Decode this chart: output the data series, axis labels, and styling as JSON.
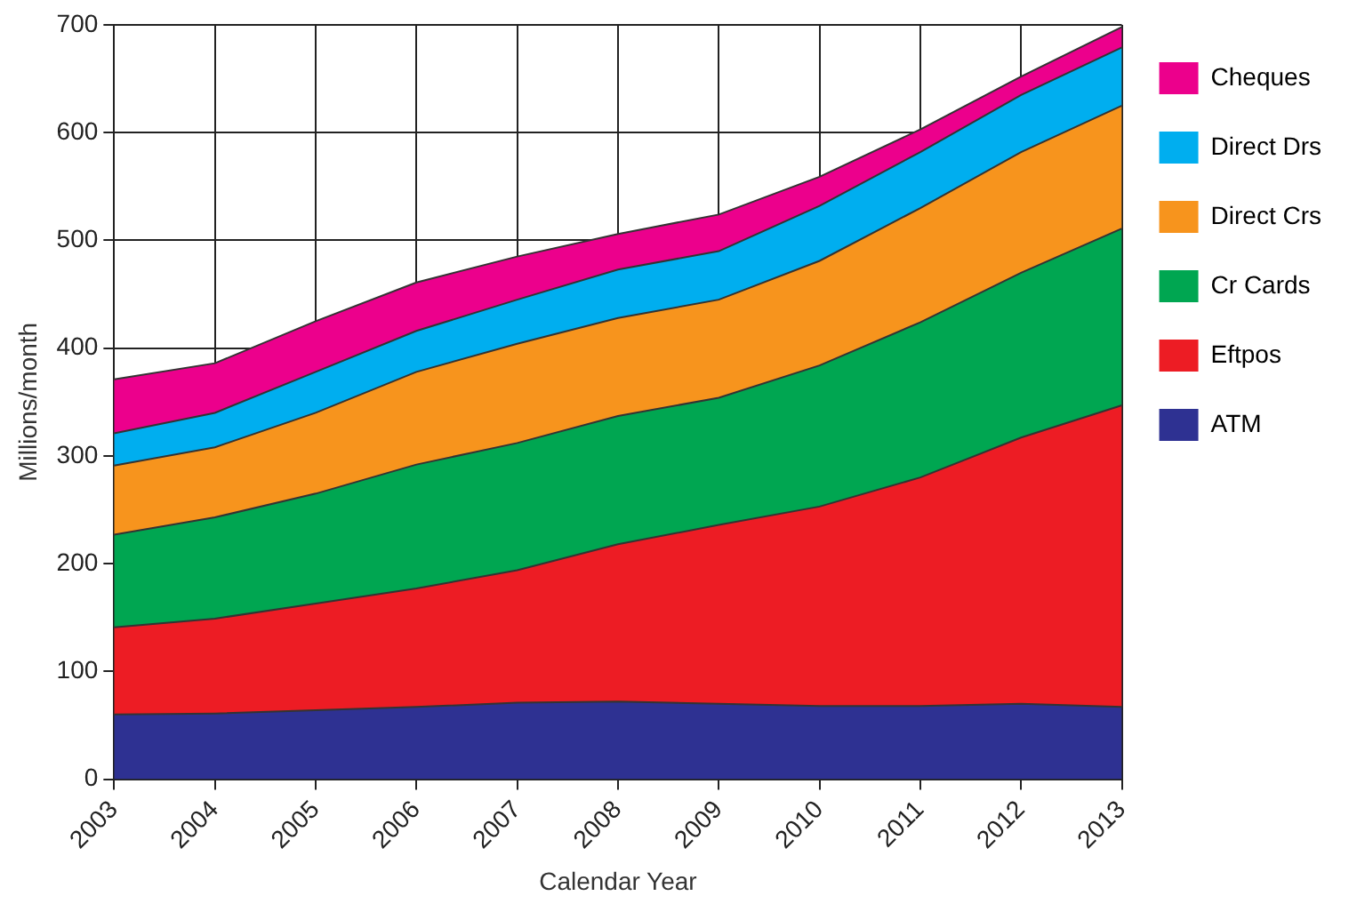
{
  "chart_data": {
    "type": "area",
    "xlabel": "Calendar Year",
    "ylabel": "Millions/month",
    "stacked": true,
    "grid": true,
    "legend": "right",
    "categories": [
      "2003",
      "2004",
      "2005",
      "2006",
      "2007",
      "2008",
      "2009",
      "2010",
      "2011",
      "2012",
      "2013"
    ],
    "ylim": [
      0,
      700
    ],
    "yticks": [
      0,
      100,
      200,
      300,
      400,
      500,
      600,
      700
    ],
    "series": [
      {
        "name": "ATM",
        "color": "#2e3192",
        "values": [
          60,
          61,
          64,
          67,
          71,
          72,
          70,
          68,
          68,
          70,
          67
        ]
      },
      {
        "name": "Eftpos",
        "color": "#ed1c24",
        "values": [
          81,
          88,
          99,
          110,
          123,
          146,
          166,
          185,
          212,
          247,
          280
        ]
      },
      {
        "name": "Cr Cards",
        "color": "#00a651",
        "values": [
          86,
          94,
          102,
          115,
          118,
          119,
          118,
          131,
          144,
          153,
          164
        ]
      },
      {
        "name": "Direct Crs",
        "color": "#f7941d",
        "values": [
          64,
          65,
          75,
          86,
          92,
          91,
          91,
          97,
          106,
          112,
          114
        ]
      },
      {
        "name": "Direct Drs",
        "color": "#00aeef",
        "values": [
          30,
          32,
          38,
          38,
          41,
          45,
          45,
          51,
          52,
          53,
          54
        ]
      },
      {
        "name": "Cheques",
        "color": "#ec008c",
        "values": [
          50,
          46,
          47,
          45,
          40,
          33,
          34,
          27,
          21,
          17,
          19
        ]
      }
    ]
  }
}
